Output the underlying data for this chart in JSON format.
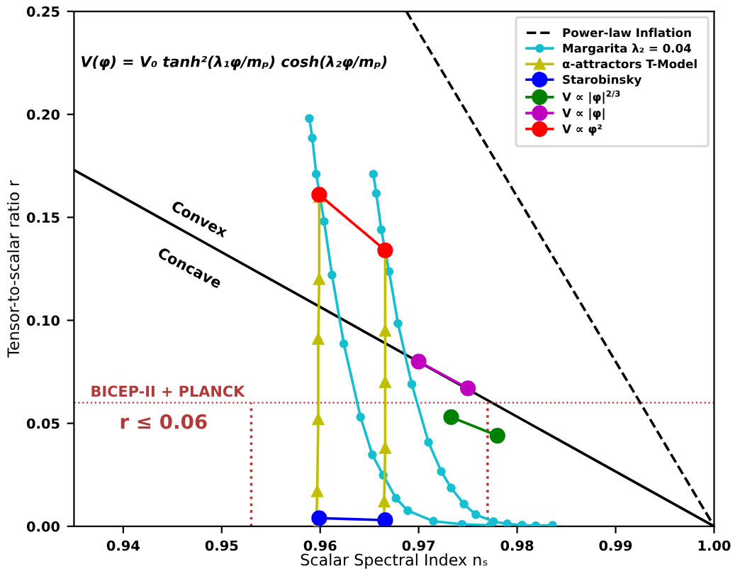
{
  "chart_data": {
    "type": "line",
    "xlabel": "Scalar Spectral Index nₛ",
    "ylabel": "Tensor-to-scalar ratio r",
    "xlim": [
      0.935,
      1.0
    ],
    "ylim": [
      0,
      0.25
    ],
    "xticks": [
      0.94,
      0.95,
      0.96,
      0.97,
      0.98,
      0.99,
      {
        "value": 1.0,
        "label": "1.00"
      }
    ],
    "yticks": [
      {
        "value": 0,
        "label": "0.00"
      },
      {
        "value": 0.05,
        "label": "0.05"
      },
      {
        "value": 0.1,
        "label": "0.10"
      },
      {
        "value": 0.15,
        "label": "0.15"
      },
      {
        "value": 0.2,
        "label": "0.20"
      },
      {
        "value": 0.25,
        "label": "0.25"
      }
    ],
    "grid": false,
    "legend": "top right",
    "series": [
      {
        "name": "Power-law Inflation",
        "color": "#000000",
        "line_style": "dashed",
        "marker": "none",
        "x": [
          0.96875,
          1.0
        ],
        "values": [
          0.25,
          0
        ]
      },
      {
        "color": "#000000",
        "line_style": "solid",
        "marker": "none",
        "x": [
          0.935,
          1.0
        ],
        "values": [
          0.173,
          0
        ]
      },
      {
        "name": "Margarita λ₂ = 0.04",
        "color": "#17becf",
        "marker": "circle",
        "x": [
          0.9589,
          0.9592,
          0.9596,
          0.9604,
          0.9612,
          0.9624,
          0.9641,
          0.9653,
          0.9664,
          0.9677,
          0.9689,
          0.9715,
          0.9744,
          0.9773
        ],
        "values": [
          0.198,
          0.1885,
          0.171,
          0.148,
          0.122,
          0.0886,
          0.053,
          0.0347,
          0.0248,
          0.0136,
          0.0076,
          0.0025,
          0.001,
          0.0005
        ]
      },
      {
        "color": "#17becf",
        "marker": "circle",
        "x": [
          0.9654,
          0.9657,
          0.9662,
          0.967,
          0.9679,
          0.9693,
          0.971,
          0.9723,
          0.9733,
          0.9746,
          0.9758,
          0.9776,
          0.979,
          0.9805,
          0.9819,
          0.9836
        ],
        "values": [
          0.171,
          0.1616,
          0.144,
          0.1237,
          0.0985,
          0.069,
          0.0408,
          0.0266,
          0.0186,
          0.0108,
          0.0057,
          0.0023,
          0.0012,
          0.0006,
          0.0003,
          0.0005
        ]
      },
      {
        "name": "α-attractors T-Model",
        "color": "#bfbf00",
        "marker": "triangle",
        "x": [
          0.9599,
          0.9599,
          0.9598,
          0.9598,
          0.9597,
          0.9596
        ],
        "values": [
          0.16,
          0.12,
          0.091,
          0.052,
          0.017,
          0
        ]
      },
      {
        "color": "#bfbf00",
        "marker": "triangle",
        "x": [
          0.9666,
          0.9666,
          0.9666,
          0.9666,
          0.9665,
          0.9665
        ],
        "values": [
          0.134,
          0.095,
          0.07,
          0.038,
          0.012,
          0
        ]
      },
      {
        "name": "Starobinsky",
        "color": "#0000ff",
        "marker": "circle",
        "x": [
          0.9599,
          0.9666
        ],
        "values": [
          0.004,
          0.003
        ]
      },
      {
        "name": "V ∝ |φ|$^{2/3}$",
        "color": "#008000",
        "marker": "circle",
        "x": [
          0.9733,
          0.978
        ],
        "values": [
          0.053,
          0.044
        ]
      },
      {
        "name": "V ∝ |φ|",
        "color": "#bf00bf",
        "marker": "circle",
        "x": [
          0.97,
          0.975
        ],
        "values": [
          0.08,
          0.067
        ]
      },
      {
        "name": "V ∝ φ²",
        "color": "#ff0000",
        "marker": "circle",
        "x": [
          0.9599,
          0.9666
        ],
        "values": [
          0.161,
          0.134
        ]
      },
      {
        "color": "#b03a3a",
        "line_style": "dotted",
        "marker": "none",
        "x": [
          0.953,
          0.953
        ],
        "values": [
          0,
          0.06
        ]
      },
      {
        "color": "#b03a3a",
        "line_style": "dotted",
        "marker": "none",
        "x": [
          0.977,
          0.977
        ],
        "values": [
          0,
          0.06
        ]
      }
    ],
    "ref_lines": [
      {
        "axis": "y",
        "value": 0.06,
        "label": "BICEP-II + PLANCK",
        "color": "#b03a3a",
        "line_style": "dotted"
      }
    ],
    "annotations": [
      "V(φ) = V₀ tanh²(λ₁φ/mₚ) cosh(λ₂φ/mₚ)",
      "Convex",
      "Concave",
      "r ≤ 0.06"
    ]
  }
}
